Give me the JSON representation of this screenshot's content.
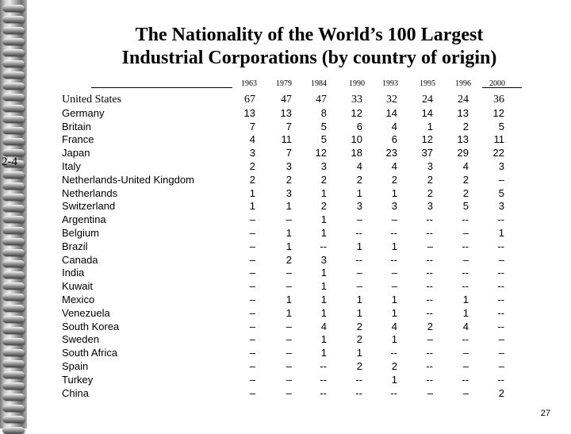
{
  "slide_number_side": "2-4",
  "title_line1": "The Nationality of the World’s 100 Largest",
  "title_line2": "Industrial Corporations (by country of origin)",
  "years": [
    "1963",
    "1979",
    "1984",
    "1990",
    "1993",
    "1995",
    "1996",
    "2000"
  ],
  "rows": [
    {
      "country": "United States",
      "values": [
        "67",
        "47",
        "47",
        "33",
        "32",
        "24",
        "24",
        "36"
      ]
    },
    {
      "country": "Germany",
      "values": [
        "13",
        "13",
        "8",
        "12",
        "14",
        "14",
        "13",
        "12"
      ]
    },
    {
      "country": "Britain",
      "values": [
        "7",
        "7",
        "5",
        "6",
        "4",
        "1",
        "2",
        "5"
      ]
    },
    {
      "country": "France",
      "values": [
        "4",
        "11",
        "5",
        "10",
        "6",
        "12",
        "13",
        "11"
      ]
    },
    {
      "country": "Japan",
      "values": [
        "3",
        "7",
        "12",
        "18",
        "23",
        "37",
        "29",
        "22"
      ]
    },
    {
      "country": "Italy",
      "values": [
        "2",
        "3",
        "3",
        "4",
        "4",
        "3",
        "4",
        "3"
      ]
    },
    {
      "country": "Netherlands-United Kingdom",
      "values": [
        "2",
        "2",
        "2",
        "2",
        "2",
        "2",
        "2",
        "–"
      ]
    },
    {
      "country": "Netherlands",
      "values": [
        "1",
        "3",
        "1",
        "1",
        "1",
        "2",
        "2",
        "5"
      ]
    },
    {
      "country": "Switzerland",
      "values": [
        "1",
        "1",
        "2",
        "3",
        "3",
        "3",
        "5",
        "3"
      ]
    },
    {
      "country": "Argentina",
      "values": [
        "–",
        "–",
        "1",
        "–",
        "–",
        "--",
        "--",
        "--"
      ]
    },
    {
      "country": "Belgium",
      "values": [
        "–",
        "1",
        "1",
        "--",
        "--",
        "--",
        "–",
        "1"
      ]
    },
    {
      "country": "Brazil",
      "values": [
        "–",
        "1",
        "--",
        "1",
        "1",
        "–",
        "--",
        "--"
      ]
    },
    {
      "country": "Canada",
      "values": [
        "–",
        "2",
        "3",
        "--",
        "--",
        "--",
        "–",
        "–"
      ]
    },
    {
      "country": "India",
      "values": [
        "–",
        "–",
        "1",
        "–",
        "–",
        "--",
        "--",
        "--"
      ]
    },
    {
      "country": "Kuwait",
      "values": [
        "–",
        "–",
        "1",
        "–",
        "–",
        "--",
        "--",
        "--"
      ]
    },
    {
      "country": "Mexico",
      "values": [
        "–",
        "1",
        "1",
        "1",
        "1",
        "--",
        "1",
        "--"
      ]
    },
    {
      "country": "Venezuela",
      "values": [
        "–",
        "1",
        "1",
        "1",
        "1",
        "--",
        "1",
        "--"
      ]
    },
    {
      "country": "South Korea",
      "values": [
        "–",
        "–",
        "4",
        "2",
        "4",
        "2",
        "4",
        "--"
      ]
    },
    {
      "country": "Sweden",
      "values": [
        "–",
        "–",
        "1",
        "2",
        "1",
        "–",
        "--",
        "–"
      ]
    },
    {
      "country": "South Africa",
      "values": [
        "–",
        "–",
        "1",
        "1",
        "--",
        "--",
        "–",
        "–"
      ]
    },
    {
      "country": "Spain",
      "values": [
        "–",
        "–",
        "--",
        "2",
        "2",
        "--",
        "–",
        "–"
      ]
    },
    {
      "country": "Turkey",
      "values": [
        "–",
        "–",
        "--",
        "--",
        "1",
        "--",
        "--",
        "--"
      ]
    },
    {
      "country": "China",
      "values": [
        "–",
        "–",
        "--",
        "--",
        "--",
        "–",
        "–",
        "2"
      ]
    }
  ],
  "page_number": "27"
}
